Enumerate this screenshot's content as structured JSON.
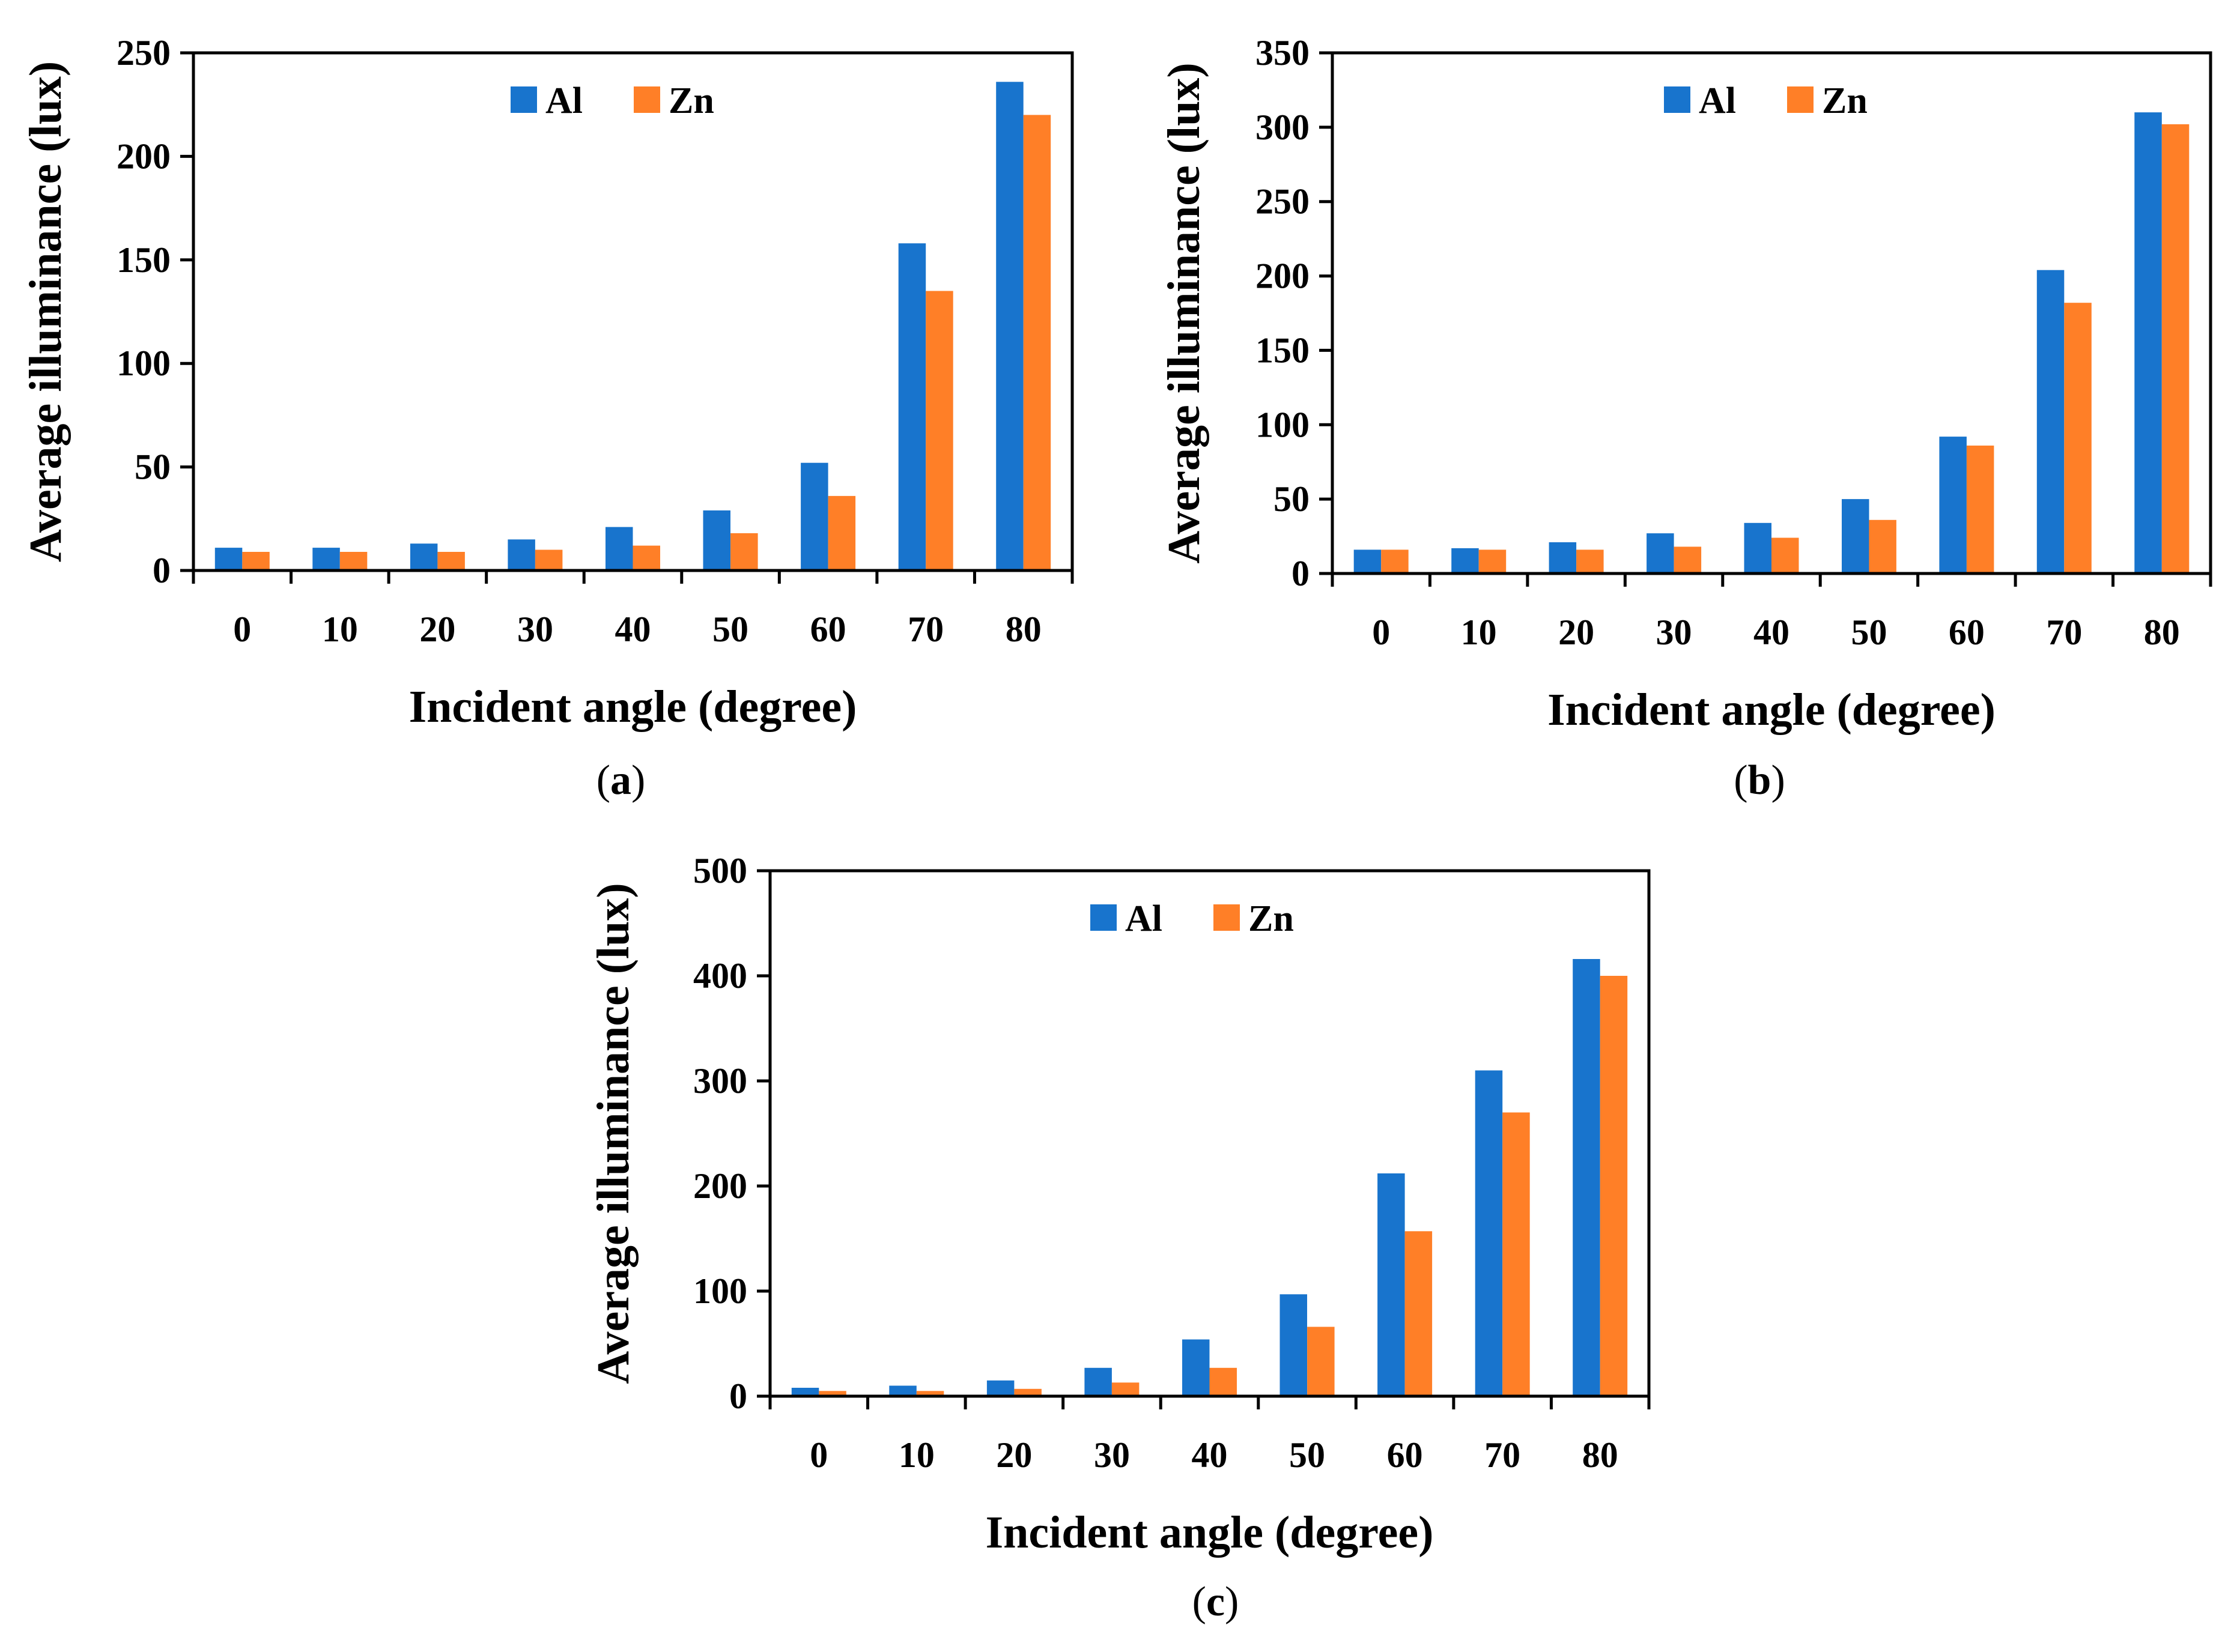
{
  "chart_data": [
    {
      "type": "bar",
      "panel_label": "a",
      "categories": [
        "0",
        "10",
        "20",
        "30",
        "40",
        "50",
        "60",
        "70",
        "80"
      ],
      "series": [
        {
          "name": "Al",
          "values": [
            11,
            11,
            13,
            15,
            21,
            29,
            52,
            158,
            236
          ]
        },
        {
          "name": "Zn",
          "values": [
            9,
            9,
            9,
            10,
            12,
            18,
            36,
            135,
            220
          ]
        }
      ],
      "ylim": [
        0,
        250
      ],
      "yticks": [
        0,
        50,
        100,
        150,
        200,
        250
      ],
      "xlabel": "Incident angle (degree)",
      "ylabel": "Average illuminance (lux)",
      "legend_position": "top-center",
      "grid": false
    },
    {
      "type": "bar",
      "panel_label": "b",
      "categories": [
        "0",
        "10",
        "20",
        "30",
        "40",
        "50",
        "60",
        "70",
        "80"
      ],
      "series": [
        {
          "name": "Al",
          "values": [
            16,
            17,
            21,
            27,
            34,
            50,
            92,
            204,
            310
          ]
        },
        {
          "name": "Zn",
          "values": [
            16,
            16,
            16,
            18,
            24,
            36,
            86,
            182,
            302
          ]
        }
      ],
      "ylim": [
        0,
        350
      ],
      "yticks": [
        0,
        50,
        100,
        150,
        200,
        250,
        300,
        350
      ],
      "xlabel": "Incident angle (degree)",
      "ylabel": "Average illuminance (lux)",
      "legend_position": "top-center",
      "grid": false
    },
    {
      "type": "bar",
      "panel_label": "c",
      "categories": [
        "0",
        "10",
        "20",
        "30",
        "40",
        "50",
        "60",
        "70",
        "80"
      ],
      "series": [
        {
          "name": "Al",
          "values": [
            8,
            10,
            15,
            27,
            54,
            97,
            212,
            310,
            416
          ]
        },
        {
          "name": "Zn",
          "values": [
            5,
            5,
            7,
            13,
            27,
            66,
            157,
            270,
            400
          ]
        }
      ],
      "ylim": [
        0,
        500
      ],
      "yticks": [
        0,
        100,
        200,
        300,
        400,
        500
      ],
      "xlabel": "Incident angle (degree)",
      "ylabel": "Average illuminance (lux)",
      "legend_position": "top-center",
      "grid": false
    }
  ],
  "colors": {
    "Al": "#1874CD",
    "Zn": "#FF7F27"
  }
}
